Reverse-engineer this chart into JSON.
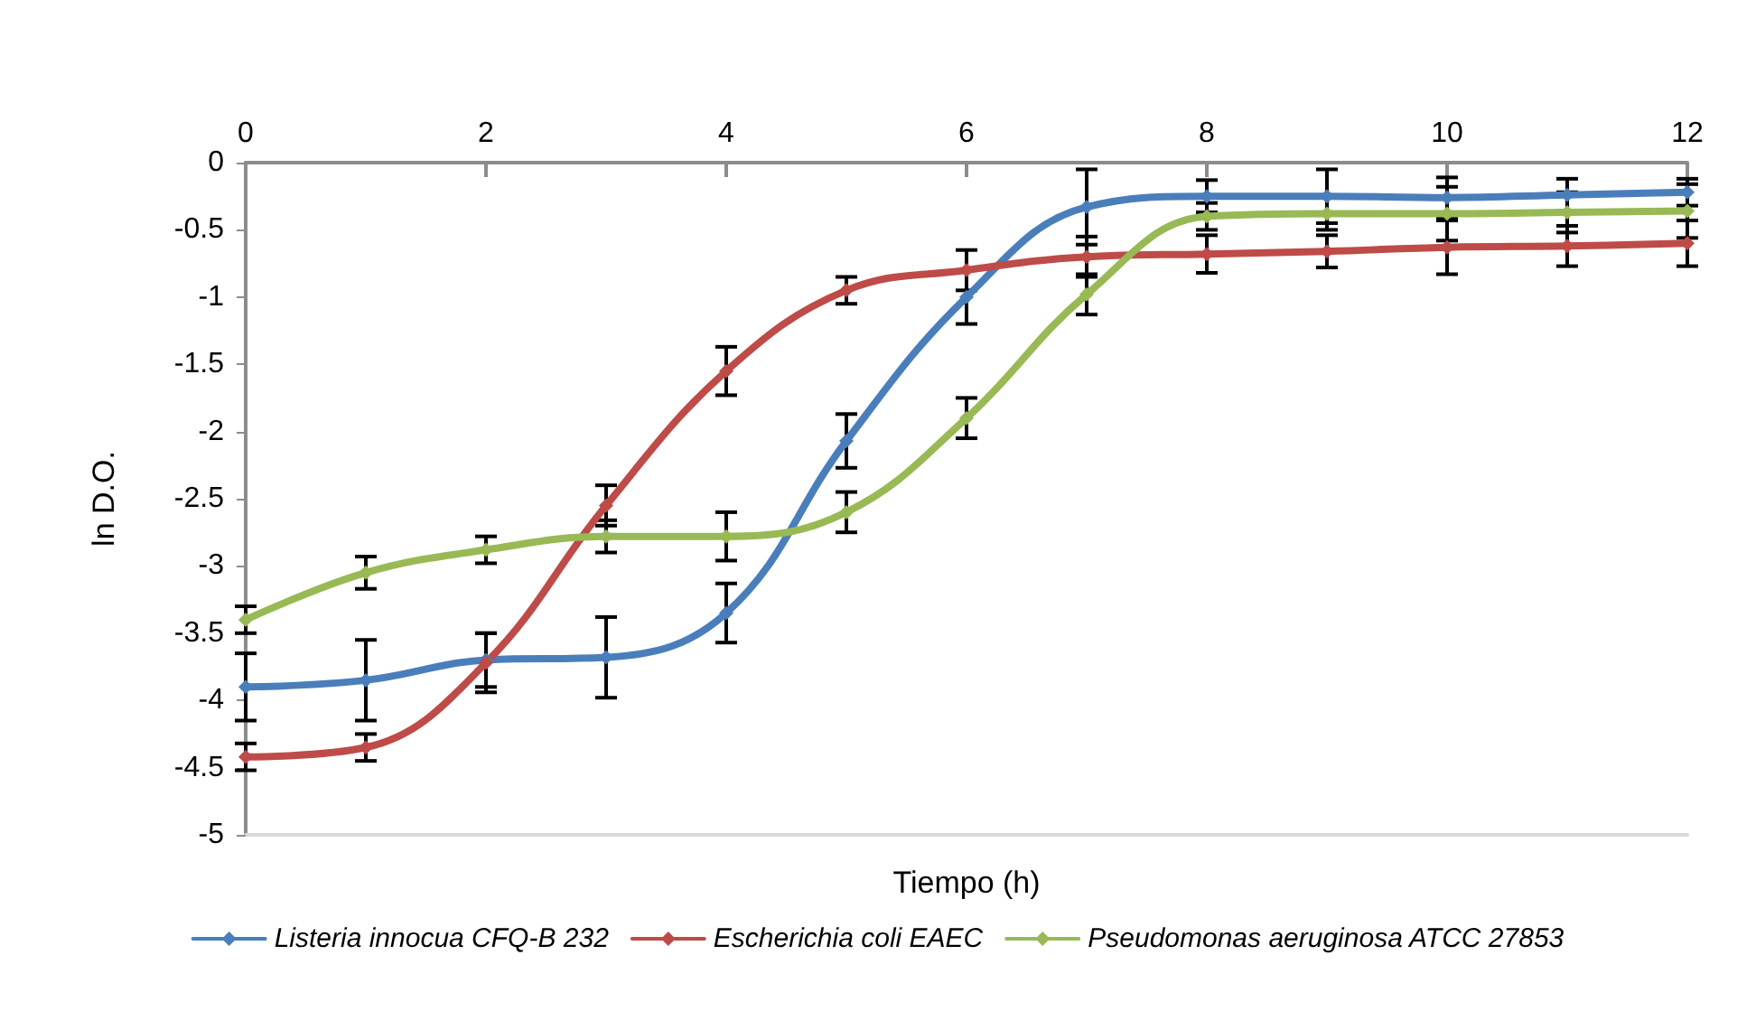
{
  "chart_data": {
    "type": "line",
    "xlabel": "Tiempo (h)",
    "ylabel": "ln D.O.",
    "x": [
      0,
      1,
      2,
      3,
      4,
      5,
      6,
      7,
      8,
      9,
      10,
      11,
      12
    ],
    "xlim": [
      0,
      12
    ],
    "xticks": [
      0,
      2,
      4,
      6,
      8,
      10,
      12
    ],
    "ylim": [
      -5,
      0
    ],
    "yticks": [
      -5,
      -4.5,
      -4,
      -3.5,
      -3,
      -2.5,
      -2,
      -1.5,
      -1,
      -0.5,
      0
    ],
    "grid": false,
    "legend": "bottom",
    "marker": "diamond",
    "line_style": "solid",
    "series": [
      {
        "name": "Listeria innocua CFQ-B 232",
        "color": "#4a7ebb",
        "values": [
          -3.9,
          -3.85,
          -3.7,
          -3.68,
          -3.35,
          -2.07,
          -1.0,
          -0.33,
          -0.25,
          -0.25,
          -0.26,
          -0.24,
          -0.22
        ],
        "errors": [
          0.25,
          0.3,
          0.2,
          0.3,
          0.22,
          0.2,
          0.2,
          0.28,
          0.12,
          0.2,
          0.15,
          0.12,
          0.1
        ]
      },
      {
        "name": "Escherichia coli EAEC",
        "color": "#be4b48",
        "values": [
          -4.42,
          -4.35,
          -3.72,
          -2.55,
          -1.55,
          -0.95,
          -0.8,
          -0.7,
          -0.68,
          -0.66,
          -0.63,
          -0.62,
          -0.6
        ],
        "errors": [
          0.1,
          0.1,
          0.22,
          0.15,
          0.18,
          0.1,
          0.15,
          0.15,
          0.14,
          0.12,
          0.2,
          0.15,
          0.17
        ]
      },
      {
        "name": "Pseudomonas aeruginosa ATCC 27853",
        "color": "#98b954",
        "values": [
          -3.4,
          -3.05,
          -2.88,
          -2.78,
          -2.78,
          -2.6,
          -1.9,
          -0.98,
          -0.4,
          -0.38,
          -0.38,
          -0.37,
          -0.36
        ],
        "errors": [
          0.1,
          0.12,
          0.1,
          0.12,
          0.18,
          0.15,
          0.15,
          0.15,
          0.1,
          0.12,
          0.2,
          0.15,
          0.2
        ]
      }
    ]
  }
}
